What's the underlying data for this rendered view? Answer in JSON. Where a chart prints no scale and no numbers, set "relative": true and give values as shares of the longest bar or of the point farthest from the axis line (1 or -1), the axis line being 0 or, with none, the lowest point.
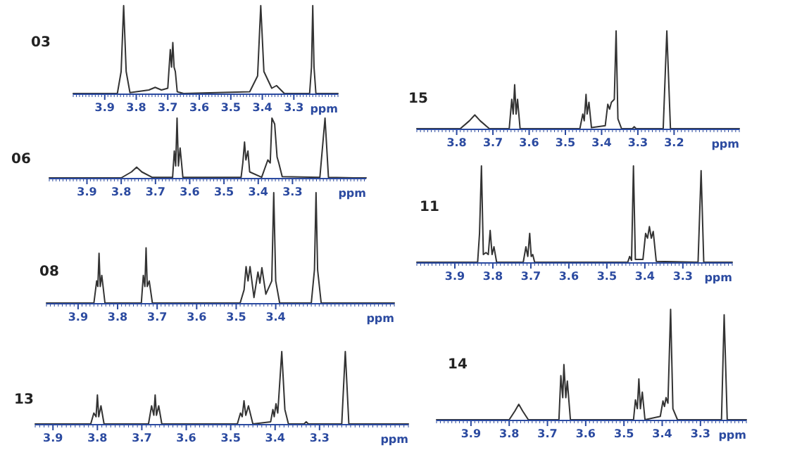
{
  "chart_data": [
    {
      "type": "line",
      "title": "03",
      "xlabel": "ppm",
      "relative": true,
      "tick_labels": "x",
      "xlim": [
        4.0,
        3.16
      ],
      "xticks": [
        3.9,
        3.8,
        3.7,
        3.6,
        3.5,
        3.4,
        3.3
      ],
      "series": [
        {
          "color": "#333333",
          "x": [
            4.0,
            3.86,
            3.848,
            3.84,
            3.832,
            3.82,
            3.76,
            3.74,
            3.72,
            3.7,
            3.692,
            3.688,
            3.684,
            3.68,
            3.676,
            3.67,
            3.65,
            3.44,
            3.415,
            3.405,
            3.395,
            3.37,
            3.355,
            3.33,
            3.25,
            3.244,
            3.24,
            3.236,
            3.23,
            3.16
          ],
          "values": [
            0,
            0,
            0.25,
            1,
            0.25,
            0.01,
            0.04,
            0.07,
            0.04,
            0.06,
            0.5,
            0.3,
            0.58,
            0.3,
            0.25,
            0.02,
            0,
            0.02,
            0.2,
            1,
            0.25,
            0.06,
            0.09,
            0,
            0,
            0.3,
            1,
            0.3,
            0,
            0
          ]
        }
      ]
    },
    {
      "type": "line",
      "title": "06",
      "xlabel": "ppm",
      "relative": true,
      "tick_labels": "x",
      "xlim": [
        4.01,
        3.085
      ],
      "xticks": [
        3.9,
        3.8,
        3.7,
        3.6,
        3.5,
        3.4,
        3.3
      ],
      "series": [
        {
          "color": "#333333",
          "x": [
            4.01,
            3.8,
            3.77,
            3.755,
            3.74,
            3.71,
            3.65,
            3.645,
            3.641,
            3.637,
            3.633,
            3.628,
            3.62,
            3.45,
            3.445,
            3.44,
            3.436,
            3.43,
            3.425,
            3.39,
            3.372,
            3.365,
            3.36,
            3.352,
            3.345,
            3.34,
            3.33,
            3.22,
            3.205,
            3.195,
            3.12,
            3.085
          ],
          "values": [
            0,
            0,
            0.1,
            0.18,
            0.1,
            0.01,
            0.01,
            0.45,
            0.2,
            1,
            0.2,
            0.5,
            0.01,
            0.01,
            0.25,
            0.6,
            0.3,
            0.45,
            0.1,
            0.01,
            0.3,
            0.25,
            1,
            0.9,
            0.35,
            0.25,
            0.02,
            0.01,
            1,
            0.01,
            0,
            0
          ]
        }
      ]
    },
    {
      "type": "line",
      "title": "08",
      "xlabel": "ppm",
      "relative": true,
      "tick_labels": "x",
      "xlim": [
        3.98,
        3.1
      ],
      "xticks": [
        3.9,
        3.8,
        3.7,
        3.6,
        3.5,
        3.4
      ],
      "series": [
        {
          "color": "#333333",
          "x": [
            3.98,
            3.86,
            3.853,
            3.85,
            3.847,
            3.844,
            3.84,
            3.832,
            3.74,
            3.735,
            3.731,
            3.728,
            3.725,
            3.72,
            3.712,
            3.49,
            3.48,
            3.475,
            3.47,
            3.465,
            3.455,
            3.445,
            3.44,
            3.435,
            3.425,
            3.41,
            3.405,
            3.4,
            3.39,
            3.31,
            3.302,
            3.298,
            3.294,
            3.285,
            3.1
          ],
          "values": [
            0,
            0,
            0.2,
            0.15,
            0.45,
            0.15,
            0.25,
            0,
            0,
            0.25,
            0.15,
            0.5,
            0.15,
            0.2,
            0,
            0,
            0.12,
            0.33,
            0.2,
            0.33,
            0.05,
            0.28,
            0.18,
            0.32,
            0.08,
            0.2,
            1,
            0.2,
            0,
            0,
            0.3,
            1,
            0.3,
            0,
            0
          ]
        }
      ]
    },
    {
      "type": "line",
      "title": "13",
      "xlabel": "ppm",
      "relative": true,
      "tick_labels": "x",
      "xlim": [
        3.94,
        3.1
      ],
      "xticks": [
        3.9,
        3.8,
        3.7,
        3.6,
        3.5,
        3.4,
        3.3
      ],
      "series": [
        {
          "color": "#333333",
          "x": [
            3.94,
            3.815,
            3.808,
            3.803,
            3.8,
            3.797,
            3.792,
            3.785,
            3.685,
            3.678,
            3.673,
            3.67,
            3.667,
            3.662,
            3.655,
            3.485,
            3.478,
            3.474,
            3.47,
            3.466,
            3.46,
            3.45,
            3.41,
            3.405,
            3.402,
            3.398,
            3.394,
            3.385,
            3.378,
            3.37,
            3.335,
            3.33,
            3.325,
            3.25,
            3.242,
            3.234,
            3.1
          ],
          "values": [
            0,
            0,
            0.15,
            0.1,
            0.4,
            0.1,
            0.25,
            0,
            0,
            0.25,
            0.12,
            0.4,
            0.12,
            0.25,
            0,
            0,
            0.15,
            0.1,
            0.32,
            0.12,
            0.25,
            0,
            0.03,
            0.2,
            0.1,
            0.28,
            0.15,
            1,
            0.2,
            0,
            0,
            0.03,
            0,
            0,
            1,
            0,
            0
          ]
        }
      ]
    },
    {
      "type": "line",
      "title": "15",
      "xlabel": "ppm",
      "relative": true,
      "tick_labels": "x",
      "xlim": [
        3.91,
        3.02
      ],
      "xticks": [
        3.8,
        3.7,
        3.6,
        3.5,
        3.4,
        3.3,
        3.2
      ],
      "series": [
        {
          "color": "#333333",
          "x": [
            3.91,
            3.79,
            3.765,
            3.75,
            3.735,
            3.71,
            3.655,
            3.648,
            3.644,
            3.64,
            3.636,
            3.632,
            3.625,
            3.46,
            3.452,
            3.448,
            3.443,
            3.44,
            3.435,
            3.428,
            3.39,
            3.383,
            3.378,
            3.373,
            3.365,
            3.36,
            3.355,
            3.345,
            3.315,
            3.31,
            3.305,
            3.23,
            3.22,
            3.21,
            3.02
          ],
          "values": [
            0,
            0,
            0.08,
            0.14,
            0.08,
            0,
            0,
            0.3,
            0.15,
            0.45,
            0.15,
            0.3,
            0,
            0,
            0.15,
            0.08,
            0.35,
            0.15,
            0.27,
            0.01,
            0.03,
            0.25,
            0.2,
            0.27,
            0.3,
            1,
            0.1,
            0,
            0,
            0.02,
            0,
            0,
            1,
            0,
            0
          ]
        }
      ]
    },
    {
      "type": "line",
      "title": "11",
      "xlabel": "ppm",
      "relative": true,
      "tick_labels": "x",
      "xlim": [
        4.0,
        3.17
      ],
      "xticks": [
        3.9,
        3.8,
        3.7,
        3.6,
        3.5,
        3.4,
        3.3
      ],
      "series": [
        {
          "color": "#333333",
          "x": [
            4.0,
            3.84,
            3.835,
            3.83,
            3.825,
            3.818,
            3.812,
            3.807,
            3.802,
            3.797,
            3.79,
            3.72,
            3.713,
            3.708,
            3.703,
            3.699,
            3.695,
            3.69,
            3.445,
            3.44,
            3.435,
            3.43,
            3.425,
            3.405,
            3.398,
            3.393,
            3.388,
            3.383,
            3.378,
            3.37,
            3.26,
            3.252,
            3.245,
            3.17
          ],
          "values": [
            0,
            0,
            0.3,
            1,
            0.08,
            0.1,
            0.08,
            0.33,
            0.08,
            0.16,
            0,
            0,
            0.16,
            0.06,
            0.3,
            0.06,
            0.08,
            0,
            0,
            0.06,
            0.02,
            1,
            0.03,
            0.03,
            0.3,
            0.25,
            0.37,
            0.25,
            0.32,
            0.01,
            0,
            0.95,
            0,
            0
          ]
        }
      ]
    },
    {
      "type": "line",
      "title": "14",
      "xlabel": "ppm",
      "relative": true,
      "tick_labels": "x",
      "xlim": [
        3.99,
        3.18
      ],
      "xticks": [
        3.9,
        3.8,
        3.7,
        3.6,
        3.5,
        3.4,
        3.3
      ],
      "series": [
        {
          "color": "#333333",
          "x": [
            3.99,
            3.8,
            3.785,
            3.775,
            3.765,
            3.75,
            3.67,
            3.665,
            3.66,
            3.657,
            3.652,
            3.648,
            3.64,
            3.475,
            3.47,
            3.465,
            3.461,
            3.457,
            3.452,
            3.445,
            3.405,
            3.398,
            3.394,
            3.39,
            3.385,
            3.378,
            3.372,
            3.36,
            3.245,
            3.238,
            3.23,
            3.18
          ],
          "values": [
            0,
            0,
            0.08,
            0.14,
            0.08,
            0,
            0,
            0.4,
            0.2,
            0.5,
            0.2,
            0.35,
            0,
            0,
            0.18,
            0.1,
            0.37,
            0.1,
            0.25,
            0,
            0.03,
            0.17,
            0.12,
            0.2,
            0.15,
            1,
            0.1,
            0,
            0,
            0.95,
            0,
            0
          ]
        }
      ]
    }
  ]
}
